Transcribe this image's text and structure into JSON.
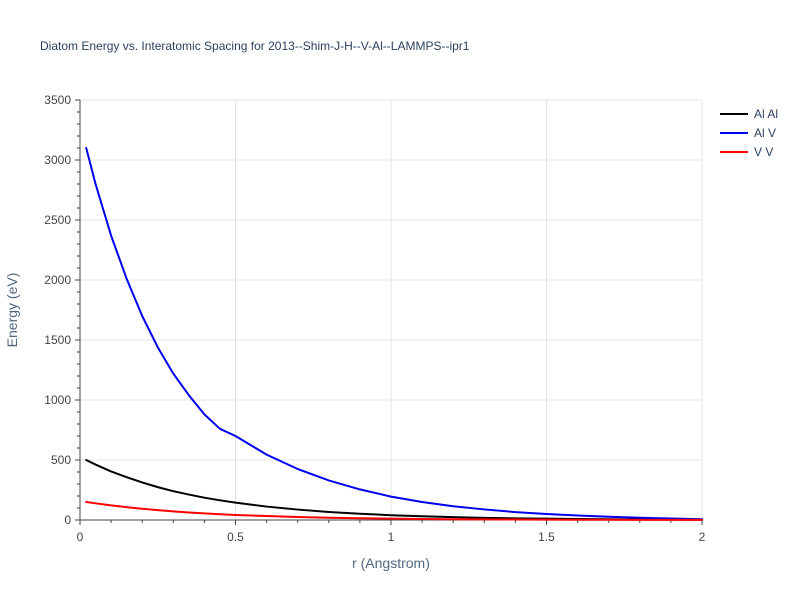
{
  "chart_data": {
    "type": "line",
    "title": "Diatom Energy vs. Interatomic Spacing for 2013--Shim-J-H--V-Al--LAMMPS--ipr1",
    "xlabel": "r (Angstrom)",
    "ylabel": "Energy (eV)",
    "xlim": [
      0,
      2
    ],
    "ylim": [
      0,
      3500
    ],
    "x_ticks": [
      0,
      0.5,
      1,
      1.5,
      2
    ],
    "x_tick_labels": [
      "0",
      "0.5",
      "1",
      "1.5",
      "2"
    ],
    "y_ticks": [
      0,
      500,
      1000,
      1500,
      2000,
      2500,
      3000,
      3500
    ],
    "y_tick_labels": [
      "0",
      "500",
      "1000",
      "1500",
      "2000",
      "2500",
      "3000",
      "3500"
    ],
    "grid": true,
    "legend_position": "top-right",
    "x": [
      0.02,
      0.05,
      0.1,
      0.15,
      0.2,
      0.25,
      0.3,
      0.35,
      0.4,
      0.45,
      0.5,
      0.6,
      0.7,
      0.8,
      0.9,
      1.0,
      1.1,
      1.2,
      1.3,
      1.4,
      1.5,
      1.6,
      1.7,
      1.8,
      1.9,
      2.0
    ],
    "series": [
      {
        "name": "Al Al",
        "color": "#000000",
        "values": [
          500,
          462,
          405,
          357,
          313,
          274,
          240,
          212,
          186,
          164,
          145,
          112,
          87,
          67,
          52,
          40,
          31,
          24,
          18,
          14,
          11,
          8,
          6,
          4,
          3,
          2
        ]
      },
      {
        "name": "Al V",
        "color": "#0000ee",
        "values": [
          3100,
          2800,
          2370,
          2010,
          1700,
          1440,
          1220,
          1040,
          880,
          760,
          700,
          545,
          425,
          330,
          255,
          195,
          150,
          115,
          88,
          66,
          50,
          37,
          27,
          19,
          12,
          6
        ]
      },
      {
        "name": "V V",
        "color": "#ff0000",
        "values": [
          150,
          139,
          122,
          107,
          94,
          82,
          72,
          63,
          55,
          48,
          42,
          33,
          25,
          19,
          15,
          11,
          8,
          6,
          5,
          4,
          3,
          2,
          2,
          1,
          1,
          1
        ]
      }
    ]
  }
}
